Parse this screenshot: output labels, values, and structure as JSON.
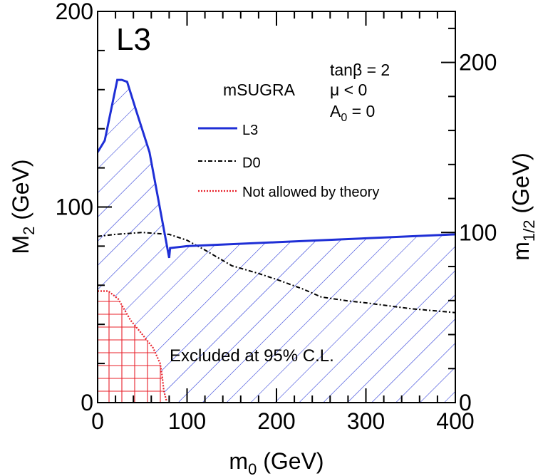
{
  "chart_data": {
    "type": "line",
    "experiment_label": "L3",
    "xlabel": {
      "base": "m",
      "sub": "0",
      "unit": " (GeV)"
    },
    "ylabel_left": {
      "base": "M",
      "sub": "2",
      "unit": " (GeV)"
    },
    "ylabel_right": {
      "base": "m",
      "sub": "1/2",
      "unit": " (GeV)"
    },
    "xlim": [
      0,
      400
    ],
    "ylim_left": [
      0,
      200
    ],
    "ylim_right": [
      0,
      230
    ],
    "x_ticks": [
      0,
      100,
      200,
      300,
      400
    ],
    "y_ticks_left": [
      0,
      100,
      200
    ],
    "y_ticks_right": [
      0,
      100,
      200
    ],
    "model": {
      "name": "mSUGRA",
      "params": [
        {
          "base": "tanβ = 2",
          "sub": "",
          "rest": ""
        },
        {
          "base": "μ < 0",
          "sub": "",
          "rest": ""
        },
        {
          "base": "A",
          "sub": "0",
          "rest": " = 0"
        }
      ]
    },
    "legend": [
      {
        "label": "L3",
        "style": "solid",
        "color": "#1f2fd6"
      },
      {
        "label": "D0",
        "style": "dashdot",
        "color": "#000000"
      },
      {
        "label": "Not allowed by theory",
        "style": "dotted",
        "color": "#e8202a"
      }
    ],
    "exclusion_text": "Excluded at 95% C.L.",
    "series": [
      {
        "name": "L3",
        "color": "#1f2fd6",
        "x": [
          0,
          8,
          22,
          27,
          33,
          44,
          58,
          80,
          81,
          100,
          200,
          300,
          400
        ],
        "y": [
          128,
          134,
          165,
          165,
          164,
          148,
          128,
          74,
          79,
          80,
          82,
          84,
          86
        ]
      },
      {
        "name": "D0",
        "color": "#000000",
        "x": [
          0,
          20,
          50,
          80,
          100,
          120,
          150,
          180,
          200,
          230,
          250,
          280,
          300,
          350,
          400
        ],
        "y": [
          85,
          86,
          87,
          86,
          83,
          78,
          70,
          66,
          63,
          58,
          54,
          52,
          51,
          48,
          46
        ]
      },
      {
        "name": "Not allowed by theory",
        "color": "#e8202a",
        "x": [
          0,
          12,
          23,
          37,
          48,
          62,
          70,
          72,
          74,
          77
        ],
        "y": [
          57,
          57,
          53,
          42,
          36,
          28,
          20,
          14,
          6,
          1
        ]
      }
    ],
    "colors": {
      "l3": "#1f2fd6",
      "theory": "#e8202a",
      "axis": "#000000"
    },
    "grid": false
  }
}
